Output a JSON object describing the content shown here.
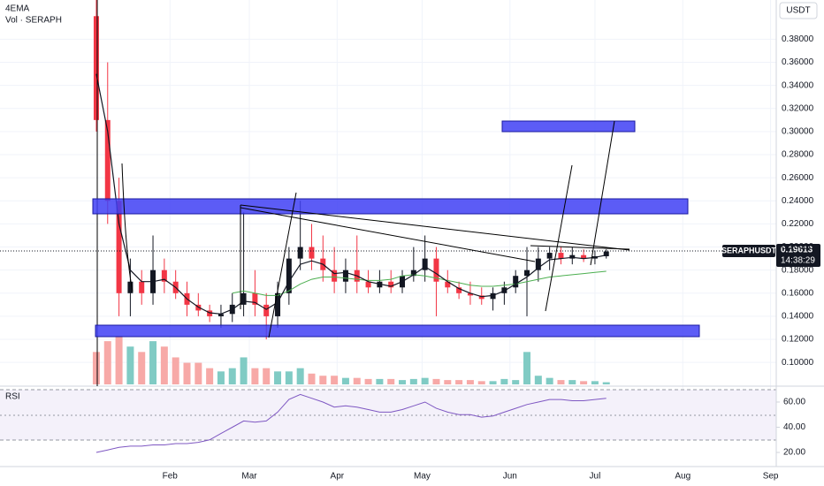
{
  "chart_data": [
    {
      "type": "candlestick",
      "legend": [
        "4EMA",
        "Vol · SERAPH"
      ],
      "currency": "USDT",
      "symbol_label": "SERAPHUSDT",
      "last_price_label": "0.19613",
      "countdown": "14:38:29",
      "x": [
        5,
        9,
        13,
        17,
        21,
        25,
        29,
        33,
        37,
        41,
        45,
        49,
        53,
        57,
        61,
        65,
        69,
        73,
        77,
        81,
        85,
        89,
        93,
        97,
        101,
        105,
        109,
        113,
        117,
        121,
        125,
        129,
        133,
        137,
        141,
        145,
        149,
        153,
        157,
        161,
        165,
        169,
        173,
        177,
        181,
        185
      ],
      "open": [
        0.4,
        0.31,
        0.24,
        0.16,
        0.17,
        0.16,
        0.18,
        0.17,
        0.16,
        0.15,
        0.145,
        0.14,
        0.142,
        0.15,
        0.16,
        0.15,
        0.14,
        0.16,
        0.19,
        0.2,
        0.19,
        0.18,
        0.17,
        0.18,
        0.17,
        0.165,
        0.17,
        0.165,
        0.175,
        0.18,
        0.19,
        0.17,
        0.165,
        0.16,
        0.158,
        0.155,
        0.16,
        0.165,
        0.175,
        0.18,
        0.19,
        0.195,
        0.19,
        0.193,
        0.19,
        0.192
      ],
      "high": [
        0.414,
        0.36,
        0.26,
        0.19,
        0.18,
        0.21,
        0.19,
        0.18,
        0.17,
        0.16,
        0.15,
        0.15,
        0.16,
        0.23,
        0.18,
        0.16,
        0.17,
        0.2,
        0.24,
        0.22,
        0.21,
        0.2,
        0.19,
        0.21,
        0.18,
        0.18,
        0.18,
        0.18,
        0.2,
        0.21,
        0.2,
        0.18,
        0.17,
        0.17,
        0.165,
        0.165,
        0.17,
        0.18,
        0.2,
        0.2,
        0.2,
        0.2,
        0.2,
        0.198,
        0.197,
        0.198
      ],
      "low": [
        0.3,
        0.22,
        0.14,
        0.14,
        0.15,
        0.15,
        0.16,
        0.155,
        0.14,
        0.14,
        0.135,
        0.13,
        0.135,
        0.14,
        0.14,
        0.12,
        0.13,
        0.15,
        0.18,
        0.18,
        0.17,
        0.16,
        0.16,
        0.16,
        0.16,
        0.16,
        0.16,
        0.16,
        0.17,
        0.17,
        0.14,
        0.16,
        0.155,
        0.15,
        0.15,
        0.145,
        0.15,
        0.16,
        0.14,
        0.17,
        0.18,
        0.185,
        0.185,
        0.187,
        0.185,
        0.19
      ],
      "close": [
        0.31,
        0.24,
        0.16,
        0.17,
        0.16,
        0.18,
        0.17,
        0.16,
        0.15,
        0.145,
        0.14,
        0.142,
        0.15,
        0.16,
        0.15,
        0.14,
        0.16,
        0.19,
        0.2,
        0.19,
        0.18,
        0.17,
        0.18,
        0.17,
        0.165,
        0.17,
        0.165,
        0.175,
        0.18,
        0.19,
        0.17,
        0.165,
        0.16,
        0.158,
        0.155,
        0.16,
        0.165,
        0.175,
        0.18,
        0.19,
        0.195,
        0.19,
        0.193,
        0.19,
        0.192,
        0.19613
      ],
      "ema_values": [
        0.35,
        0.3,
        0.22,
        0.18,
        0.17,
        0.17,
        0.172,
        0.165,
        0.155,
        0.148,
        0.143,
        0.142,
        0.146,
        0.153,
        0.152,
        0.146,
        0.152,
        0.17,
        0.185,
        0.188,
        0.185,
        0.177,
        0.178,
        0.175,
        0.17,
        0.168,
        0.166,
        0.17,
        0.176,
        0.183,
        0.177,
        0.17,
        0.164,
        0.16,
        0.157,
        0.158,
        0.162,
        0.168,
        0.174,
        0.182,
        0.189,
        0.19,
        0.191,
        0.19,
        0.191,
        0.193
      ],
      "ma_values": [
        null,
        null,
        null,
        null,
        null,
        null,
        null,
        null,
        null,
        null,
        null,
        null,
        0.16,
        0.162,
        0.16,
        0.158,
        0.158,
        0.162,
        0.168,
        0.172,
        0.174,
        0.174,
        0.173,
        0.172,
        0.171,
        0.171,
        0.172,
        0.175,
        0.176,
        0.175,
        0.173,
        0.171,
        0.169,
        0.167,
        0.166,
        0.166,
        0.167,
        0.168,
        0.17,
        0.172,
        0.174,
        0.175,
        0.176,
        0.177,
        0.178,
        0.179
      ],
      "volume": [
        30,
        40,
        45,
        35,
        30,
        40,
        35,
        25,
        20,
        20,
        15,
        12,
        15,
        25,
        15,
        15,
        12,
        12,
        15,
        10,
        8,
        8,
        6,
        6,
        5,
        5,
        5,
        4,
        5,
        6,
        5,
        4,
        4,
        4,
        3,
        3,
        5,
        4,
        30,
        8,
        6,
        4,
        4,
        3,
        3,
        2
      ],
      "up_color": "#131722",
      "down_color": "#f23645",
      "ema_color": "#131722",
      "ma_color": "#4caf50",
      "volume_up_color": "#80cbc4",
      "volume_down_color": "#f7a9a7",
      "xlim": [
        -29,
        245
      ],
      "ylim": [
        0.081,
        0.414
      ],
      "grid": true,
      "xticks": [
        {
          "value": 31,
          "label": "Feb"
        },
        {
          "value": 59,
          "label": "Mar"
        },
        {
          "value": 90,
          "label": "Apr"
        },
        {
          "value": 120,
          "label": "May"
        },
        {
          "value": 151,
          "label": "Jun"
        },
        {
          "value": 181,
          "label": "Jul"
        },
        {
          "value": 212,
          "label": "Aug"
        },
        {
          "value": 243,
          "label": "Sep"
        }
      ],
      "yticks": [
        {
          "value": 0.1,
          "label": "0.10000"
        },
        {
          "value": 0.12,
          "label": "0.12000"
        },
        {
          "value": 0.14,
          "label": "0.14000"
        },
        {
          "value": 0.16,
          "label": "0.16000"
        },
        {
          "value": 0.18,
          "label": "0.18000"
        },
        {
          "value": 0.2,
          "label": "0.20000"
        },
        {
          "value": 0.22,
          "label": "0.22000"
        },
        {
          "value": 0.24,
          "label": "0.24000"
        },
        {
          "value": 0.26,
          "label": "0.26000"
        },
        {
          "value": 0.28,
          "label": "0.28000"
        },
        {
          "value": 0.3,
          "label": "0.30000"
        },
        {
          "value": 0.32,
          "label": "0.32000"
        },
        {
          "value": 0.34,
          "label": "0.34000"
        },
        {
          "value": 0.36,
          "label": "0.36000"
        },
        {
          "value": 0.38,
          "label": "0.38000"
        }
      ]
    },
    {
      "type": "line",
      "title": "RSI",
      "x": [
        5,
        9,
        13,
        17,
        21,
        25,
        29,
        33,
        37,
        41,
        45,
        49,
        53,
        57,
        61,
        65,
        69,
        73,
        77,
        81,
        85,
        89,
        93,
        97,
        101,
        105,
        109,
        113,
        117,
        121,
        125,
        129,
        133,
        137,
        141,
        145,
        149,
        153,
        157,
        161,
        165,
        169,
        173,
        177,
        181,
        185
      ],
      "values": [
        20,
        22,
        24,
        25,
        25,
        26,
        26,
        27,
        27,
        28,
        30,
        35,
        40,
        45,
        44,
        45,
        52,
        62,
        66,
        63,
        60,
        56,
        57,
        56,
        54,
        52,
        52,
        54,
        57,
        60,
        55,
        52,
        50,
        50,
        48,
        49,
        52,
        55,
        58,
        60,
        62,
        62,
        61,
        61,
        62,
        63
      ],
      "color": "#7e57c2",
      "xlim": [
        -29,
        245
      ],
      "ylim": [
        9.5,
        70.5
      ],
      "yticks": [
        {
          "value": 20,
          "label": "20.00"
        },
        {
          "value": 40,
          "label": "40.00"
        },
        {
          "value": 60,
          "label": "60.00"
        }
      ]
    }
  ]
}
